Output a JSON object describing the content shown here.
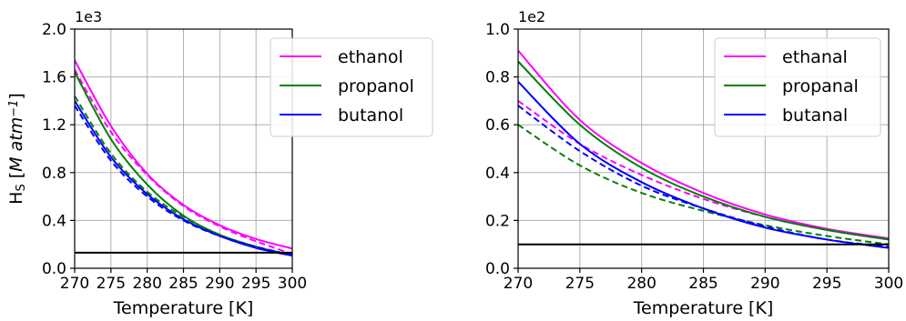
{
  "chart_data": [
    {
      "type": "line",
      "xlabel": "Temperature [K]",
      "ylabel": "H_S [M atm^-1]",
      "ylabel_parts": {
        "main": "H",
        "sub": "S",
        "pre": "[",
        "unit": "M atm",
        "sup": "−1",
        "post": "]"
      },
      "multiplier": "1e3",
      "xlim": [
        270,
        300
      ],
      "ylim": [
        0,
        2.0
      ],
      "xticks": [
        270,
        275,
        280,
        285,
        290,
        295,
        300
      ],
      "yticks": [
        "0.0",
        "0.4",
        "0.8",
        "1.2",
        "1.6",
        "2.0"
      ],
      "grid": true,
      "legend_position": "top-right",
      "colors": {
        "ethanol": "#ff00ff",
        "propanol": "#008000",
        "butanol": "#0000ff",
        "reference": "#000000"
      },
      "series": [
        {
          "name": "ethanol",
          "style": "solid",
          "color": "#ff00ff",
          "x": [
            270,
            275,
            280,
            285,
            290,
            295,
            300
          ],
          "values": [
            1.74,
            1.19,
            0.79,
            0.53,
            0.36,
            0.245,
            0.165
          ]
        },
        {
          "style": "dashed",
          "color": "#ff00ff",
          "x": [
            270,
            275,
            280,
            285,
            290,
            295,
            300
          ],
          "values": [
            1.66,
            1.14,
            0.78,
            0.52,
            0.35,
            0.225,
            0.12
          ]
        },
        {
          "name": "propanol",
          "style": "solid",
          "color": "#008000",
          "x": [
            270,
            275,
            280,
            285,
            290,
            295,
            300
          ],
          "values": [
            1.64,
            1.08,
            0.7,
            0.44,
            0.28,
            0.18,
            0.11
          ]
        },
        {
          "style": "dashed",
          "color": "#008000",
          "x": [
            270,
            275,
            280,
            285,
            290,
            295,
            300
          ],
          "values": [
            1.44,
            0.96,
            0.64,
            0.43,
            0.28,
            0.18,
            0.11
          ]
        },
        {
          "name": "butanol",
          "style": "solid",
          "color": "#0000ff",
          "x": [
            270,
            275,
            280,
            285,
            290,
            295,
            300
          ],
          "values": [
            1.4,
            0.93,
            0.62,
            0.41,
            0.27,
            0.17,
            0.105
          ]
        },
        {
          "style": "dashed",
          "color": "#0000ff",
          "x": [
            270,
            275,
            280,
            285,
            290,
            295,
            300
          ],
          "values": [
            1.36,
            0.9,
            0.6,
            0.4,
            0.27,
            0.18,
            0.11
          ]
        },
        {
          "style": "solid",
          "color": "#000000",
          "x": [
            270,
            300
          ],
          "values": [
            0.13,
            0.13
          ]
        }
      ]
    },
    {
      "type": "line",
      "xlabel": "Temperature [K]",
      "ylabel": "",
      "multiplier": "1e2",
      "xlim": [
        270,
        300
      ],
      "ylim": [
        0,
        1.0
      ],
      "xticks": [
        270,
        275,
        280,
        285,
        290,
        295,
        300
      ],
      "yticks": [
        "0.0",
        "0.2",
        "0.4",
        "0.6",
        "0.8",
        "1.0"
      ],
      "grid": true,
      "legend_position": "top-right",
      "colors": {
        "ethanal": "#ff00ff",
        "propanal": "#008000",
        "butanal": "#0000ff",
        "reference": "#000000"
      },
      "series": [
        {
          "name": "ethanal",
          "style": "solid",
          "color": "#ff00ff",
          "x": [
            270,
            275,
            280,
            285,
            290,
            295,
            300
          ],
          "values": [
            0.91,
            0.62,
            0.44,
            0.315,
            0.225,
            0.165,
            0.125
          ]
        },
        {
          "style": "dashed",
          "color": "#ff00ff",
          "x": [
            270,
            275,
            280,
            285,
            290,
            295,
            300
          ],
          "values": [
            0.7,
            0.52,
            0.39,
            0.29,
            0.215,
            0.16,
            0.12
          ]
        },
        {
          "name": "propanal",
          "style": "solid",
          "color": "#008000",
          "x": [
            270,
            275,
            280,
            285,
            290,
            295,
            300
          ],
          "values": [
            0.865,
            0.6,
            0.42,
            0.3,
            0.215,
            0.16,
            0.12
          ]
        },
        {
          "style": "dashed",
          "color": "#008000",
          "x": [
            270,
            275,
            280,
            285,
            290,
            295,
            300
          ],
          "values": [
            0.6,
            0.43,
            0.315,
            0.24,
            0.18,
            0.135,
            0.1
          ]
        },
        {
          "name": "butanal",
          "style": "solid",
          "color": "#0000ff",
          "x": [
            270,
            275,
            280,
            285,
            290,
            295,
            300
          ],
          "values": [
            0.78,
            0.52,
            0.36,
            0.25,
            0.17,
            0.12,
            0.085
          ]
        },
        {
          "style": "dashed",
          "color": "#0000ff",
          "x": [
            270,
            275,
            280,
            285,
            290,
            295,
            300
          ],
          "values": [
            0.68,
            0.49,
            0.345,
            0.25,
            0.175,
            0.12,
            0.09
          ]
        },
        {
          "style": "solid",
          "color": "#000000",
          "x": [
            270,
            300
          ],
          "values": [
            0.1,
            0.1
          ]
        }
      ]
    }
  ]
}
